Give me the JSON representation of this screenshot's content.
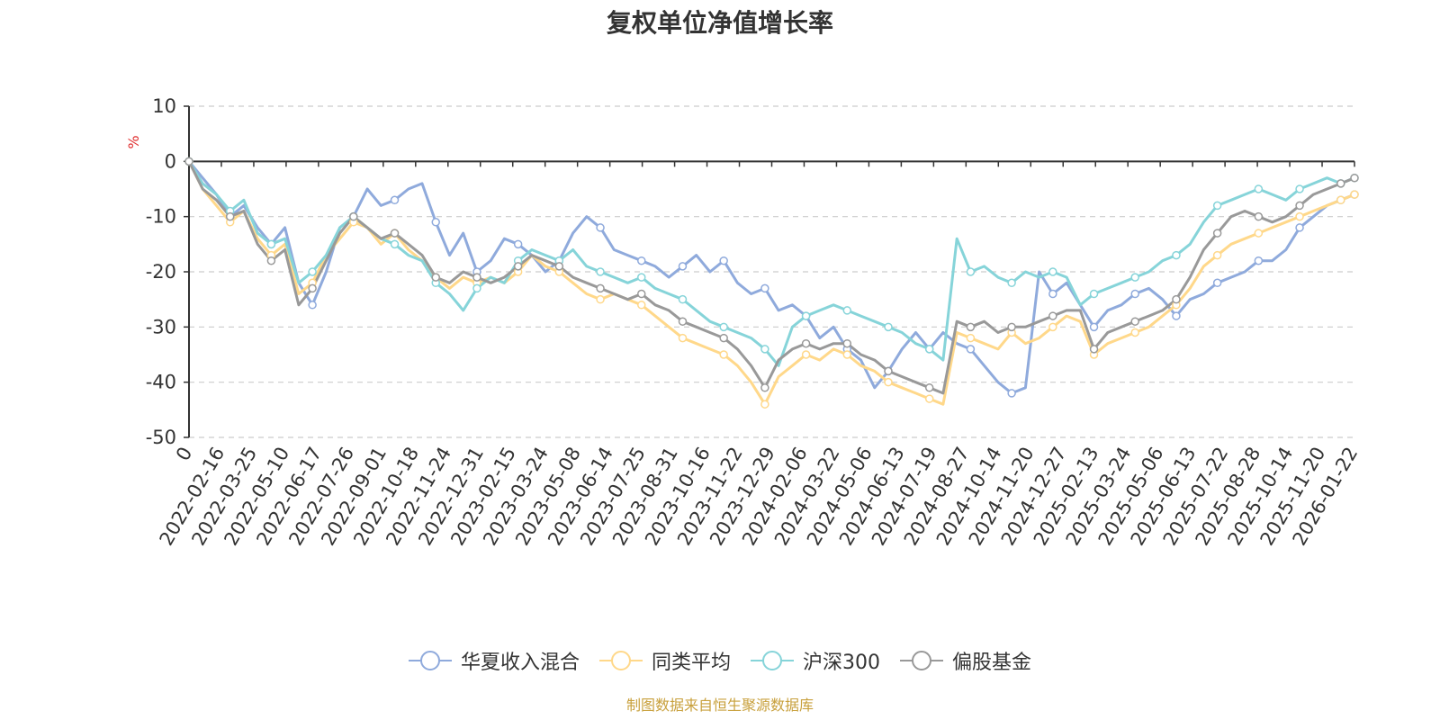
{
  "chart_data": {
    "type": "line",
    "title": "复权单位净值增长率",
    "ylabel": "%",
    "ylim": [
      -50,
      10
    ],
    "yticks": [
      10,
      0,
      -10,
      -20,
      -30,
      -40,
      -50
    ],
    "x_tick_labels": [
      "0",
      "2022-02-16",
      "2022-03-25",
      "2022-05-10",
      "2022-06-17",
      "2022-07-26",
      "2022-09-01",
      "2022-10-18",
      "2022-11-24",
      "2022-12-31",
      "2023-02-15",
      "2023-03-24",
      "2023-05-08",
      "2023-06-14",
      "2023-07-25",
      "2023-08-31",
      "2023-10-16",
      "2023-11-22",
      "2023-12-29",
      "2024-02-06",
      "2024-03-22",
      "2024-05-06",
      "2024-06-13",
      "2024-07-19",
      "2024-08-27",
      "2024-10-14",
      "2024-11-20",
      "2024-12-27",
      "2025-02-13",
      "2025-03-24",
      "2025-05-06",
      "2025-06-13",
      "2025-07-22",
      "2025-08-28",
      "2025-10-14",
      "2025-11-20",
      "2026-01-22"
    ],
    "series": [
      {
        "name": "华夏收入混合",
        "color": "#8faadc",
        "values": [
          0,
          -3,
          -6,
          -10,
          -8,
          -12,
          -15,
          -12,
          -22,
          -26,
          -20,
          -12,
          -10,
          -5,
          -8,
          -7,
          -5,
          -4,
          -11,
          -17,
          -13,
          -20,
          -18,
          -14,
          -15,
          -17,
          -20,
          -18,
          -13,
          -10,
          -12,
          -16,
          -17,
          -18,
          -19,
          -21,
          -19,
          -17,
          -20,
          -18,
          -22,
          -24,
          -23,
          -27,
          -26,
          -28,
          -32,
          -30,
          -34,
          -36,
          -41,
          -38,
          -34,
          -31,
          -34,
          -31,
          -33,
          -34,
          -37,
          -40,
          -42,
          -41,
          -20,
          -24,
          -22,
          -26,
          -30,
          -27,
          -26,
          -24,
          -23,
          -25,
          -28,
          -25,
          -24,
          -22,
          -21,
          -20,
          -18,
          -18,
          -16,
          -12,
          -10,
          -8,
          -7,
          -6
        ]
      },
      {
        "name": "同类平均",
        "color": "#ffd88a",
        "values": [
          0,
          -5,
          -8,
          -11,
          -9,
          -14,
          -17,
          -15,
          -24,
          -22,
          -17,
          -14,
          -11,
          -12,
          -15,
          -13,
          -16,
          -18,
          -21,
          -23,
          -21,
          -22,
          -21,
          -22,
          -20,
          -17,
          -19,
          -20,
          -22,
          -24,
          -25,
          -24,
          -25,
          -26,
          -28,
          -30,
          -32,
          -33,
          -34,
          -35,
          -37,
          -40,
          -44,
          -39,
          -37,
          -35,
          -36,
          -34,
          -35,
          -37,
          -38,
          -40,
          -41,
          -42,
          -43,
          -44,
          -31,
          -32,
          -33,
          -34,
          -31,
          -33,
          -32,
          -30,
          -28,
          -29,
          -35,
          -33,
          -32,
          -31,
          -30,
          -28,
          -26,
          -23,
          -19,
          -17,
          -15,
          -14,
          -13,
          -12,
          -11,
          -10,
          -9,
          -8,
          -7,
          -6
        ]
      },
      {
        "name": "沪深300",
        "color": "#86d4d9",
        "values": [
          0,
          -4,
          -6,
          -9,
          -7,
          -13,
          -15,
          -14,
          -22,
          -20,
          -17,
          -12,
          -10,
          -12,
          -14,
          -15,
          -17,
          -18,
          -22,
          -24,
          -27,
          -23,
          -21,
          -22,
          -18,
          -16,
          -17,
          -18,
          -16,
          -19,
          -20,
          -21,
          -22,
          -21,
          -23,
          -24,
          -25,
          -27,
          -29,
          -30,
          -31,
          -32,
          -34,
          -37,
          -30,
          -28,
          -27,
          -26,
          -27,
          -28,
          -29,
          -30,
          -31,
          -33,
          -34,
          -36,
          -14,
          -20,
          -19,
          -21,
          -22,
          -20,
          -21,
          -20,
          -21,
          -26,
          -24,
          -23,
          -22,
          -21,
          -20,
          -18,
          -17,
          -15,
          -11,
          -8,
          -7,
          -6,
          -5,
          -6,
          -7,
          -5,
          -4,
          -3,
          -4,
          -3
        ]
      },
      {
        "name": "偏股基金",
        "color": "#999999",
        "values": [
          0,
          -5,
          -7,
          -10,
          -9,
          -15,
          -18,
          -16,
          -26,
          -23,
          -18,
          -13,
          -10,
          -12,
          -14,
          -13,
          -15,
          -17,
          -21,
          -22,
          -20,
          -21,
          -22,
          -21,
          -19,
          -17,
          -18,
          -19,
          -21,
          -22,
          -23,
          -24,
          -25,
          -24,
          -26,
          -27,
          -29,
          -30,
          -31,
          -32,
          -34,
          -37,
          -41,
          -36,
          -34,
          -33,
          -34,
          -33,
          -33,
          -35,
          -36,
          -38,
          -39,
          -40,
          -41,
          -42,
          -29,
          -30,
          -29,
          -31,
          -30,
          -30,
          -29,
          -28,
          -27,
          -27,
          -34,
          -31,
          -30,
          -29,
          -28,
          -27,
          -25,
          -21,
          -16,
          -13,
          -10,
          -9,
          -10,
          -11,
          -10,
          -8,
          -6,
          -5,
          -4,
          -3
        ]
      }
    ]
  },
  "footer": {
    "source": "制图数据来自恒生聚源数据库",
    "source_color": "#c8a03c"
  },
  "colors": {
    "axis": "#333333",
    "grid": "#cccccc",
    "unit": "#e03030"
  }
}
